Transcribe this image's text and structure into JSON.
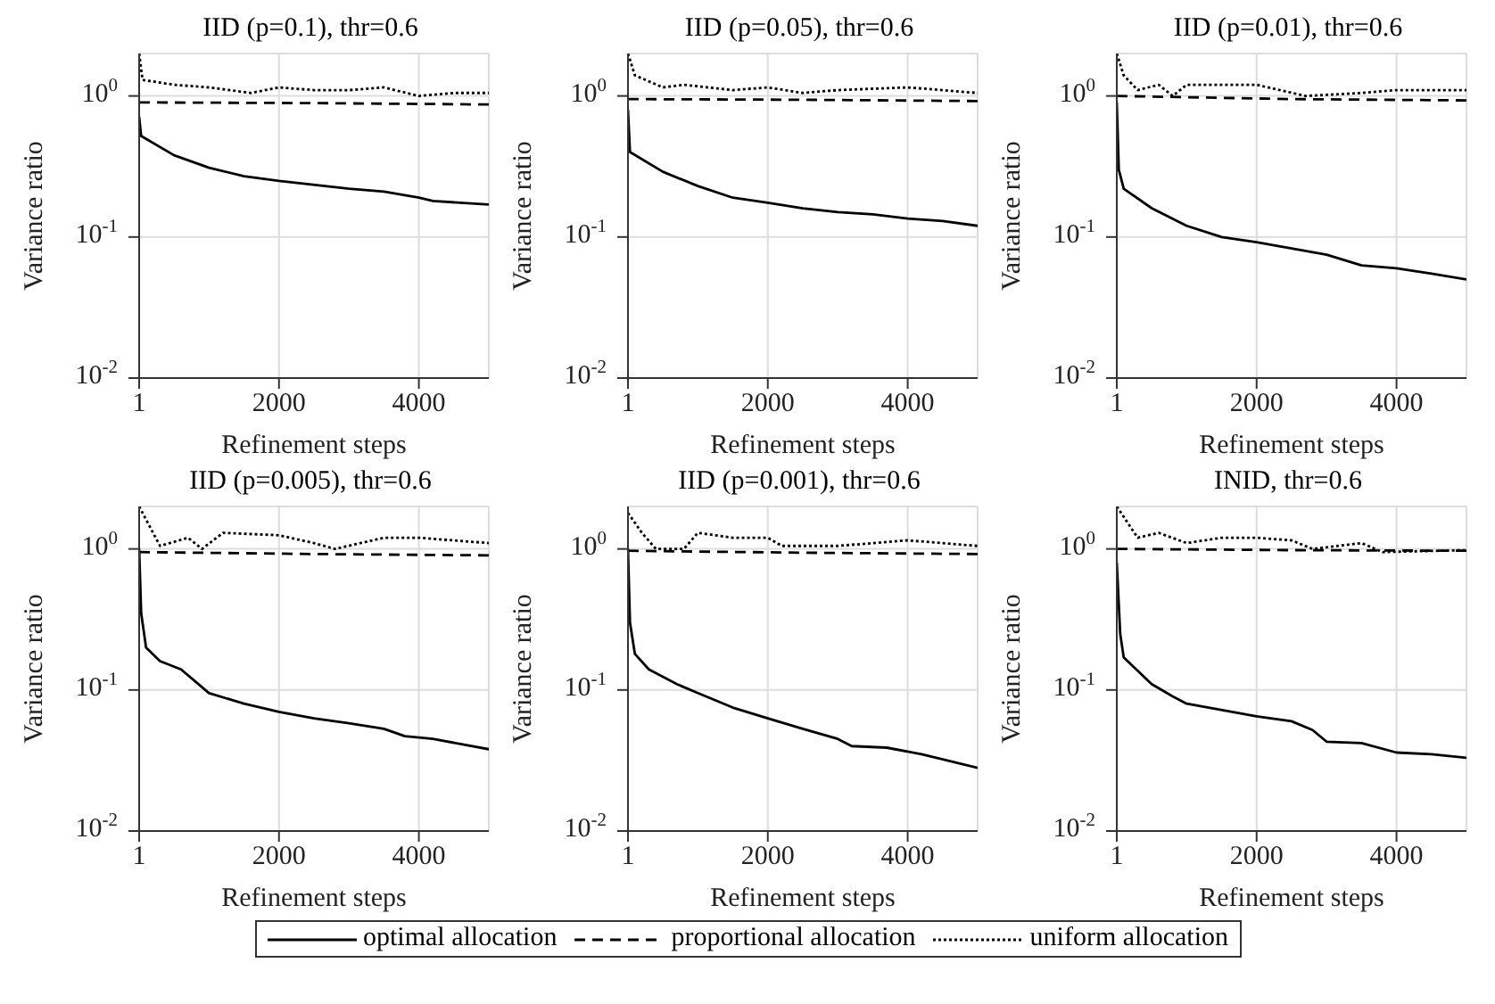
{
  "chart_data": [
    {
      "type": "line",
      "title": "IID (p=0.1), thr=0.6",
      "xlabel": "Refinement steps",
      "ylabel": "Variance ratio",
      "log": "y",
      "grid": true,
      "legend": "bottom",
      "xlim": [
        1,
        5000
      ],
      "xticks": [
        1,
        2000,
        4000
      ],
      "ylim": [
        0.01,
        2
      ],
      "yticks": [
        {
          "value": 0.01,
          "label": "10$^{-2}$"
        },
        {
          "value": 0.1,
          "label": "10$^{-1}$"
        },
        {
          "value": 1,
          "label": "10$^{0}$"
        }
      ],
      "series": [
        {
          "name": "optimal allocation",
          "color": "#000000",
          "line_style": "solid",
          "x": [
            1,
            30,
            500,
            1000,
            1500,
            2000,
            3000,
            3500,
            4000,
            4200,
            5000
          ],
          "values": [
            0.71,
            0.52,
            0.38,
            0.31,
            0.27,
            0.25,
            0.22,
            0.21,
            0.19,
            0.18,
            0.17
          ]
        },
        {
          "name": "proportional allocation",
          "color": "#000000",
          "line_style": "dashed",
          "x": [
            1,
            2500,
            5000
          ],
          "values": [
            0.9,
            0.89,
            0.87
          ]
        },
        {
          "name": "uniform allocation",
          "color": "#000000",
          "line_style": "dotted",
          "x": [
            1,
            50,
            500,
            1000,
            1600,
            2000,
            2500,
            3000,
            3500,
            4000,
            4500,
            5000
          ],
          "values": [
            2.0,
            1.3,
            1.2,
            1.15,
            1.05,
            1.15,
            1.1,
            1.1,
            1.15,
            1.0,
            1.05,
            1.05
          ]
        }
      ]
    },
    {
      "type": "line",
      "title": "IID (p=0.05), thr=0.6",
      "xlabel": "Refinement steps",
      "ylabel": "Variance ratio",
      "log": "y",
      "grid": true,
      "xlim": [
        1,
        5000
      ],
      "xticks": [
        1,
        2000,
        4000
      ],
      "ylim": [
        0.01,
        2
      ],
      "yticks": [
        {
          "value": 0.01,
          "label": "10$^{-2}$"
        },
        {
          "value": 0.1,
          "label": "10$^{-1}$"
        },
        {
          "value": 1,
          "label": "10$^{0}$"
        }
      ],
      "series": [
        {
          "color": "#000000",
          "line_style": "solid",
          "x": [
            1,
            30,
            500,
            1000,
            1500,
            2000,
            2500,
            3000,
            3500,
            4000,
            4500,
            5000
          ],
          "values": [
            0.8,
            0.4,
            0.29,
            0.23,
            0.19,
            0.175,
            0.16,
            0.15,
            0.145,
            0.135,
            0.13,
            0.12
          ]
        },
        {
          "color": "#000000",
          "line_style": "dashed",
          "x": [
            1,
            2500,
            5000
          ],
          "values": [
            0.95,
            0.94,
            0.92
          ]
        },
        {
          "color": "#000000",
          "line_style": "dotted",
          "x": [
            1,
            100,
            500,
            800,
            1500,
            2000,
            2500,
            3000,
            4000,
            5000
          ],
          "values": [
            2.0,
            1.4,
            1.15,
            1.2,
            1.1,
            1.15,
            1.05,
            1.1,
            1.15,
            1.05
          ]
        }
      ]
    },
    {
      "type": "line",
      "title": "IID (p=0.01), thr=0.6",
      "xlabel": "Refinement steps",
      "ylabel": "Variance ratio",
      "log": "y",
      "grid": true,
      "xlim": [
        1,
        5000
      ],
      "xticks": [
        1,
        2000,
        4000
      ],
      "ylim": [
        0.01,
        2
      ],
      "yticks": [
        {
          "value": 0.01,
          "label": "10$^{-2}$"
        },
        {
          "value": 0.1,
          "label": "10$^{-1}$"
        },
        {
          "value": 1,
          "label": "10$^{0}$"
        }
      ],
      "series": [
        {
          "color": "#000000",
          "line_style": "solid",
          "x": [
            1,
            30,
            100,
            500,
            1000,
            1500,
            2000,
            2500,
            3000,
            3500,
            4000,
            4500,
            5000
          ],
          "values": [
            0.9,
            0.3,
            0.22,
            0.16,
            0.12,
            0.1,
            0.092,
            0.083,
            0.075,
            0.063,
            0.06,
            0.055,
            0.05
          ]
        },
        {
          "color": "#000000",
          "line_style": "dashed",
          "x": [
            1,
            2500,
            5000
          ],
          "values": [
            1.0,
            0.95,
            0.93
          ]
        },
        {
          "color": "#000000",
          "line_style": "dotted",
          "x": [
            1,
            100,
            300,
            600,
            800,
            1000,
            2000,
            2700,
            3500,
            4000,
            5000
          ],
          "values": [
            2.0,
            1.4,
            1.1,
            1.2,
            1.0,
            1.2,
            1.2,
            1.0,
            1.05,
            1.1,
            1.1
          ]
        }
      ]
    },
    {
      "type": "line",
      "title": "IID (p=0.005), thr=0.6",
      "xlabel": "Refinement steps",
      "ylabel": "Variance ratio",
      "log": "y",
      "grid": true,
      "xlim": [
        1,
        5000
      ],
      "xticks": [
        1,
        2000,
        4000
      ],
      "ylim": [
        0.01,
        2
      ],
      "yticks": [
        {
          "value": 0.01,
          "label": "10$^{-2}$"
        },
        {
          "value": 0.1,
          "label": "10$^{-1}$"
        },
        {
          "value": 1,
          "label": "10$^{0}$"
        }
      ],
      "series": [
        {
          "color": "#000000",
          "line_style": "solid",
          "x": [
            1,
            30,
            100,
            300,
            600,
            1000,
            1500,
            2000,
            2500,
            3000,
            3500,
            3800,
            4200,
            5000
          ],
          "values": [
            1.0,
            0.35,
            0.2,
            0.16,
            0.14,
            0.095,
            0.08,
            0.07,
            0.063,
            0.058,
            0.053,
            0.047,
            0.045,
            0.038
          ]
        },
        {
          "color": "#000000",
          "line_style": "dashed",
          "x": [
            1,
            2500,
            5000
          ],
          "values": [
            0.95,
            0.92,
            0.9
          ]
        },
        {
          "color": "#000000",
          "line_style": "dotted",
          "x": [
            1,
            200,
            300,
            700,
            900,
            1200,
            2000,
            2500,
            2800,
            3500,
            4000,
            5000
          ],
          "values": [
            2.0,
            1.3,
            1.05,
            1.2,
            1.0,
            1.3,
            1.25,
            1.1,
            1.0,
            1.2,
            1.2,
            1.1
          ]
        }
      ]
    },
    {
      "type": "line",
      "title": "IID (p=0.001), thr=0.6",
      "xlabel": "Refinement steps",
      "ylabel": "Variance ratio",
      "log": "y",
      "grid": true,
      "xlim": [
        1,
        5000
      ],
      "xticks": [
        1,
        2000,
        4000
      ],
      "ylim": [
        0.01,
        2
      ],
      "yticks": [
        {
          "value": 0.01,
          "label": "10$^{-2}$"
        },
        {
          "value": 0.1,
          "label": "10$^{-1}$"
        },
        {
          "value": 1,
          "label": "10$^{0}$"
        }
      ],
      "series": [
        {
          "color": "#000000",
          "line_style": "solid",
          "x": [
            1,
            30,
            100,
            300,
            700,
            1000,
            1500,
            2000,
            2500,
            3000,
            3200,
            3700,
            4200,
            5000
          ],
          "values": [
            1.0,
            0.3,
            0.18,
            0.14,
            0.11,
            0.095,
            0.075,
            0.063,
            0.053,
            0.045,
            0.04,
            0.039,
            0.035,
            0.028
          ]
        },
        {
          "color": "#000000",
          "line_style": "dashed",
          "x": [
            1,
            2500,
            5000
          ],
          "values": [
            0.97,
            0.94,
            0.92
          ]
        },
        {
          "color": "#000000",
          "line_style": "dotted",
          "x": [
            1,
            200,
            400,
            800,
            1000,
            1500,
            2000,
            2200,
            3000,
            4000,
            5000
          ],
          "values": [
            1.8,
            1.3,
            1.0,
            1.0,
            1.3,
            1.2,
            1.2,
            1.05,
            1.05,
            1.15,
            1.05
          ]
        }
      ]
    },
    {
      "type": "line",
      "title": "INID, thr=0.6",
      "xlabel": "Refinement steps",
      "ylabel": "Variance ratio",
      "log": "y",
      "grid": true,
      "xlim": [
        1,
        5000
      ],
      "xticks": [
        1,
        2000,
        4000
      ],
      "ylim": [
        0.01,
        2
      ],
      "yticks": [
        {
          "value": 0.01,
          "label": "10$^{-2}$"
        },
        {
          "value": 0.1,
          "label": "10$^{-1}$"
        },
        {
          "value": 1,
          "label": "10$^{0}$"
        }
      ],
      "series": [
        {
          "color": "#000000",
          "line_style": "solid",
          "x": [
            1,
            50,
            100,
            500,
            800,
            1000,
            2000,
            2500,
            2800,
            3000,
            3500,
            4000,
            4500,
            5000
          ],
          "values": [
            0.8,
            0.25,
            0.17,
            0.11,
            0.09,
            0.08,
            0.065,
            0.06,
            0.052,
            0.043,
            0.042,
            0.036,
            0.035,
            0.033
          ]
        },
        {
          "color": "#000000",
          "line_style": "dashed",
          "x": [
            1,
            2500,
            5000
          ],
          "values": [
            1.0,
            0.98,
            0.97
          ]
        },
        {
          "color": "#000000",
          "line_style": "dotted",
          "x": [
            1,
            300,
            600,
            1000,
            1500,
            2000,
            2500,
            2800,
            3500,
            3800,
            5000
          ],
          "values": [
            2.0,
            1.2,
            1.3,
            1.1,
            1.2,
            1.2,
            1.15,
            1.0,
            1.1,
            0.95,
            0.98
          ]
        }
      ]
    }
  ]
}
